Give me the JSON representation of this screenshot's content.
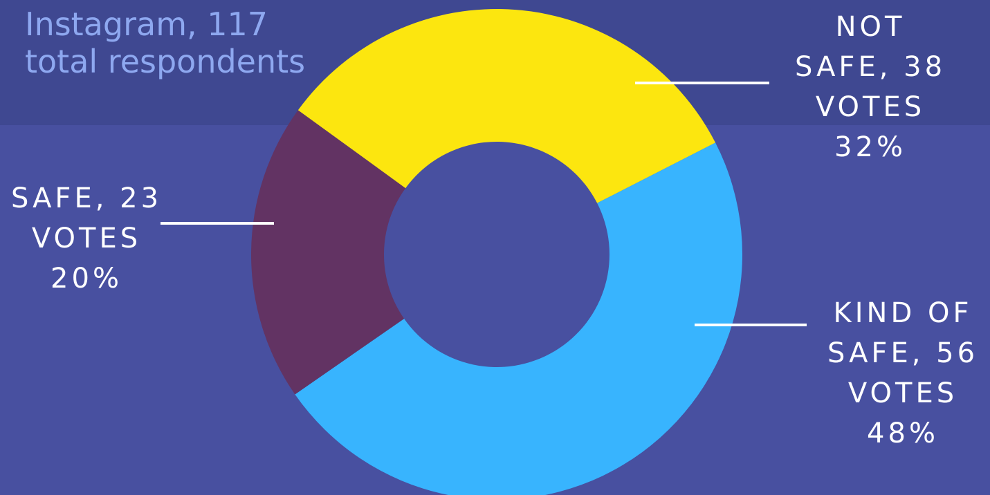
{
  "chart_data": {
    "type": "pie",
    "variant": "donut",
    "subtitle_lines": [
      "Instagram, 117",
      "total respondents"
    ],
    "total_respondents": 117,
    "slices": [
      {
        "label_lines": [
          "NOT",
          "SAFE, 38",
          "VOTES",
          "32%"
        ],
        "category": "Not safe",
        "value": 38,
        "percent": 32,
        "color": "#fce60f"
      },
      {
        "label_lines": [
          "KIND OF",
          "SAFE, 56",
          "VOTES",
          "48%"
        ],
        "category": "Kind of safe",
        "value": 56,
        "percent": 48,
        "color": "#38b4fe"
      },
      {
        "label_lines": [
          "SAFE, 23",
          "VOTES",
          "20%"
        ],
        "category": "Safe",
        "value": 23,
        "percent": 20,
        "color": "#623363"
      }
    ]
  }
}
